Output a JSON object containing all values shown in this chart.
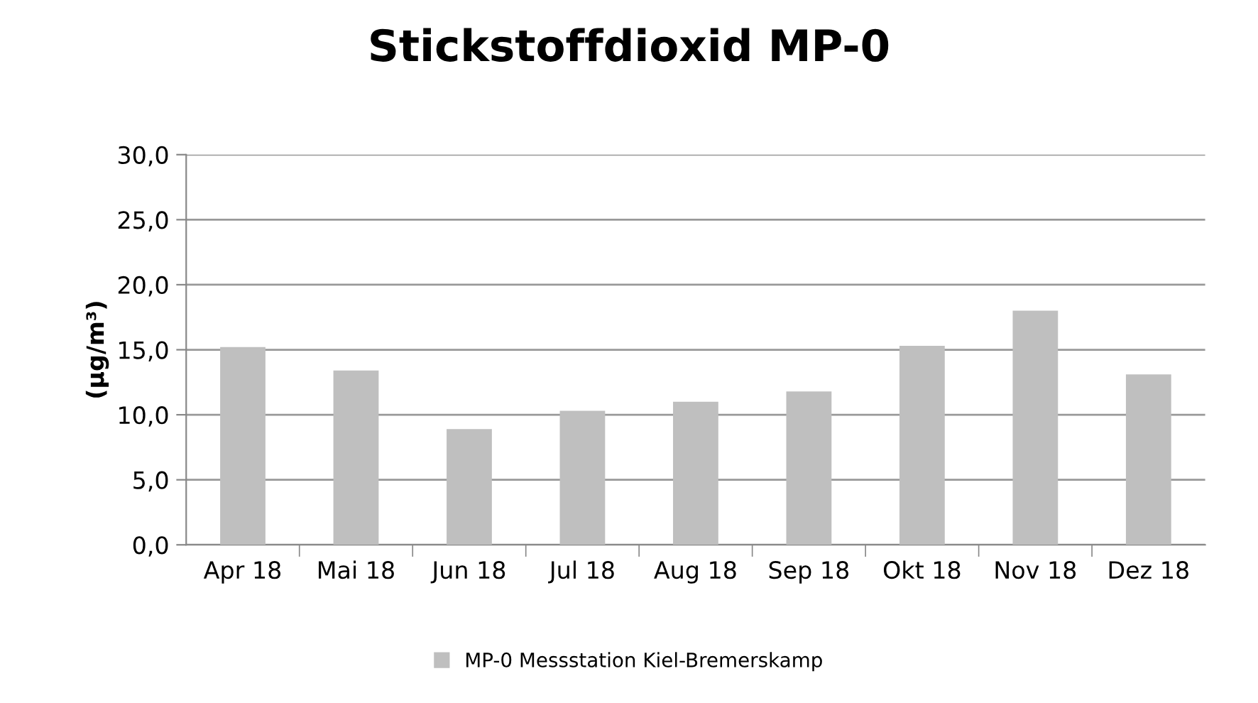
{
  "chart_data": {
    "type": "bar",
    "title": "Stickstoffdioxid MP-0",
    "ylabel": "(µg/m³)",
    "categories": [
      "Apr 18",
      "Mai 18",
      "Jun 18",
      "Jul 18",
      "Aug 18",
      "Sep 18",
      "Okt 18",
      "Nov 18",
      "Dez 18"
    ],
    "series": [
      {
        "name": "MP-0 Messstation Kiel-Bremerskamp",
        "color": "#bfbfbf",
        "values": [
          15.2,
          13.4,
          8.9,
          10.3,
          11.0,
          11.8,
          15.3,
          18.0,
          13.1
        ]
      }
    ],
    "ylim": [
      0,
      30
    ],
    "yticks": [
      {
        "value": 0,
        "label": "0,0"
      },
      {
        "value": 5,
        "label": "5,0"
      },
      {
        "value": 10,
        "label": "10,0"
      },
      {
        "value": 15,
        "label": "15,0"
      },
      {
        "value": 20,
        "label": "20,0"
      },
      {
        "value": 25,
        "label": "25,0"
      },
      {
        "value": 30,
        "label": "30,0"
      }
    ],
    "grid": "y",
    "legend": "bottom"
  }
}
